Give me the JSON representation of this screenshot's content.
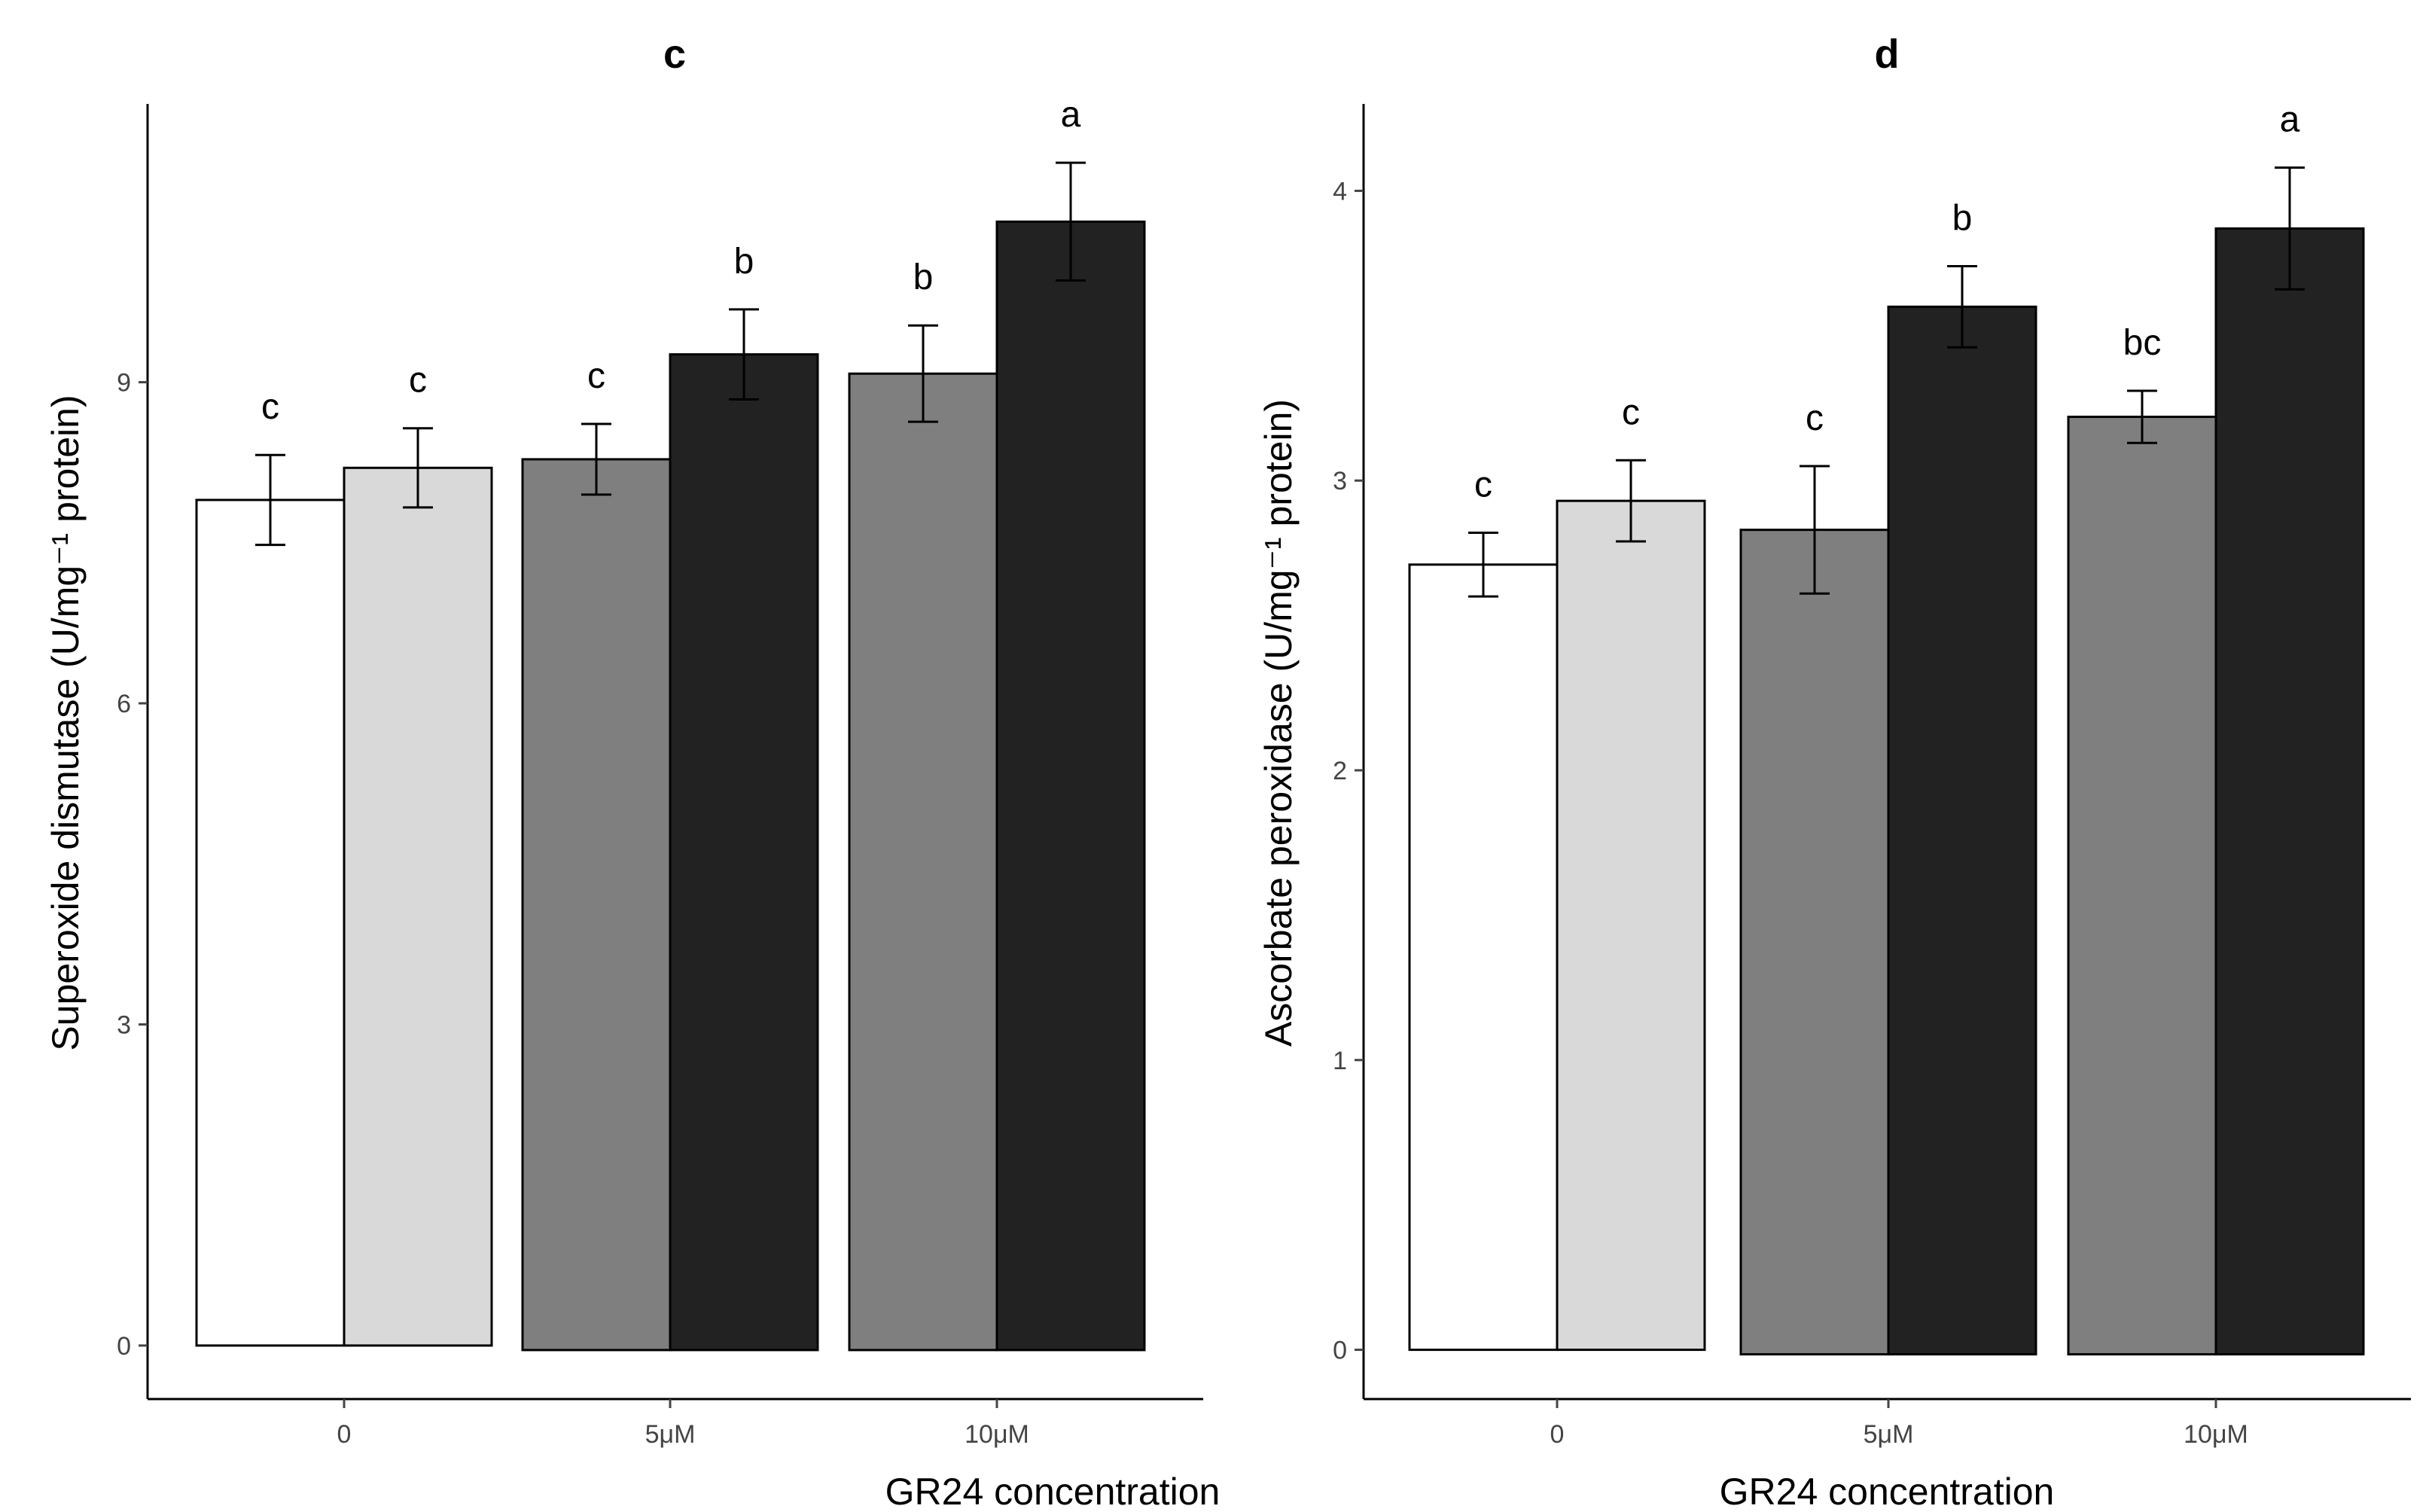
{
  "chart_data": [
    {
      "type": "bar",
      "title": "c",
      "xlabel": "GR24 concentration",
      "ylabel": "Superoxide dismutase (U/mg⁻¹ protein)",
      "ylim": [
        -0.5,
        11.6
      ],
      "yticks": [
        0,
        3,
        6,
        9
      ],
      "categories": [
        "0",
        "5μM",
        "10μM"
      ],
      "series": [
        {
          "name": "left bar",
          "colors": [
            "#ffffff",
            "#7f7f7f",
            "#7f7f7f"
          ],
          "values": [
            7.9,
            8.28,
            9.08
          ],
          "errors": [
            0.42,
            0.33,
            0.45
          ],
          "labels": [
            "c",
            "c",
            "b"
          ]
        },
        {
          "name": "right bar",
          "colors": [
            "#d9d9d9",
            "#222222",
            "#222222"
          ],
          "values": [
            8.2,
            9.26,
            10.5
          ],
          "errors": [
            0.37,
            0.42,
            0.55
          ],
          "labels": [
            "c",
            "b",
            "a"
          ]
        }
      ]
    },
    {
      "type": "bar",
      "title": "d",
      "xlabel": "GR24 concentration",
      "ylabel": "Ascorbate peroxidase (U/mg⁻¹ protein)",
      "ylim": [
        -0.17,
        4.3
      ],
      "yticks": [
        0,
        1,
        2,
        3,
        4
      ],
      "categories": [
        "0",
        "5μM",
        "10μM"
      ],
      "series": [
        {
          "name": "left bar",
          "colors": [
            "#ffffff",
            "#7f7f7f",
            "#7f7f7f"
          ],
          "values": [
            2.71,
            2.83,
            3.22
          ],
          "errors": [
            0.11,
            0.22,
            0.09
          ],
          "labels": [
            "c",
            "c",
            "bc"
          ]
        },
        {
          "name": "right bar",
          "colors": [
            "#d9d9d9",
            "#222222",
            "#222222"
          ],
          "values": [
            2.93,
            3.6,
            3.87
          ],
          "errors": [
            0.14,
            0.14,
            0.21
          ],
          "labels": [
            "c",
            "b",
            "a"
          ]
        }
      ]
    }
  ]
}
